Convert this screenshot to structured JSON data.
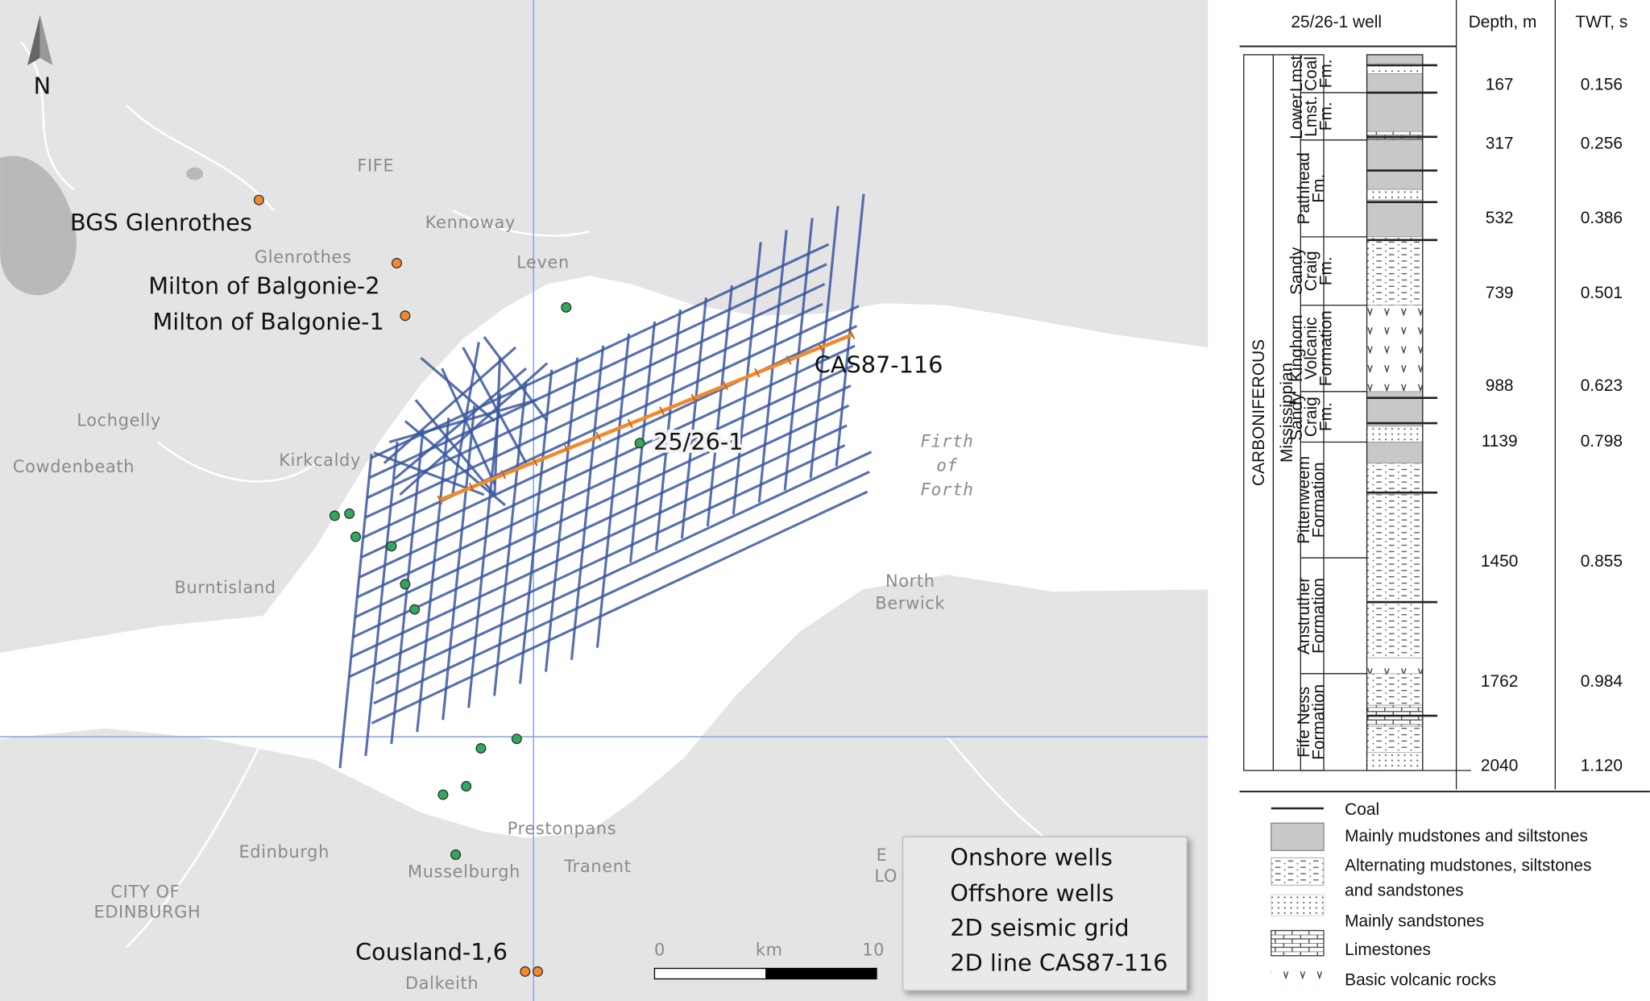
{
  "map": {
    "north_label": "N",
    "place_labels": [
      "FIFE",
      "Kennoway",
      "Glenrothes",
      "Leven",
      "Lochgelly",
      "Kirkcaldy",
      "Cowdenbeath",
      "Burntisland",
      "Prestonpans",
      "Tranent",
      "Musselburgh",
      "Dalkeith",
      "E",
      "LO"
    ],
    "city_labels": [
      "Edinburgh",
      "CITY OF",
      "EDINBURGH"
    ],
    "sea_label": [
      "Firth",
      "of",
      "Forth"
    ],
    "north_berwick": [
      "North",
      "Berwick"
    ],
    "well_labels": [
      "BGS Glenrothes",
      "Milton of Balgonie-2",
      "Milton of Balgonie-1",
      "25/26-1",
      "Cousland-1,6"
    ],
    "line_label": "CAS87-116",
    "scale": {
      "start": "0",
      "unit": "km",
      "end": "10"
    },
    "legend": [
      "Onshore wells",
      "Offshore wells",
      "2D seismic grid",
      "2D line CAS87-116"
    ]
  },
  "column": {
    "headers": [
      "25/26-1 well",
      "Depth, m",
      "TWT, s"
    ],
    "system": "CARBONIFEROUS",
    "series": "Mississippian",
    "formations": [
      [
        "Lmst",
        "Coal",
        "Fm."
      ],
      [
        "Lower",
        "Lmst.",
        "Fm."
      ],
      [
        "Pathhead",
        "Fm."
      ],
      [
        "Sandy",
        "Craig",
        "Fm."
      ],
      [
        "Kinghorn",
        "Volcanic",
        "Formation"
      ],
      [
        "Sandy",
        "Craig",
        "Fm."
      ],
      [
        "Pittenweem",
        "Formation"
      ],
      [
        "Anstruther",
        "Formation"
      ],
      [
        "Fife Ness",
        "Formation"
      ]
    ],
    "depths": [
      "167",
      "317",
      "532",
      "739",
      "988",
      "1139",
      "1450",
      "1762",
      "2040"
    ],
    "twt": [
      "0.156",
      "0.256",
      "0.386",
      "0.501",
      "0.623",
      "0.798",
      "0.855",
      "0.984",
      "1.120"
    ],
    "legend": [
      [
        "Coal"
      ],
      [
        "Mainly mudstones and siltstones"
      ],
      [
        "Alternating mudstones, siltstones",
        "and sandstones"
      ],
      [
        "Mainly sandstones"
      ],
      [
        "Limestones"
      ],
      [
        "Basic volcanic rocks"
      ]
    ]
  }
}
